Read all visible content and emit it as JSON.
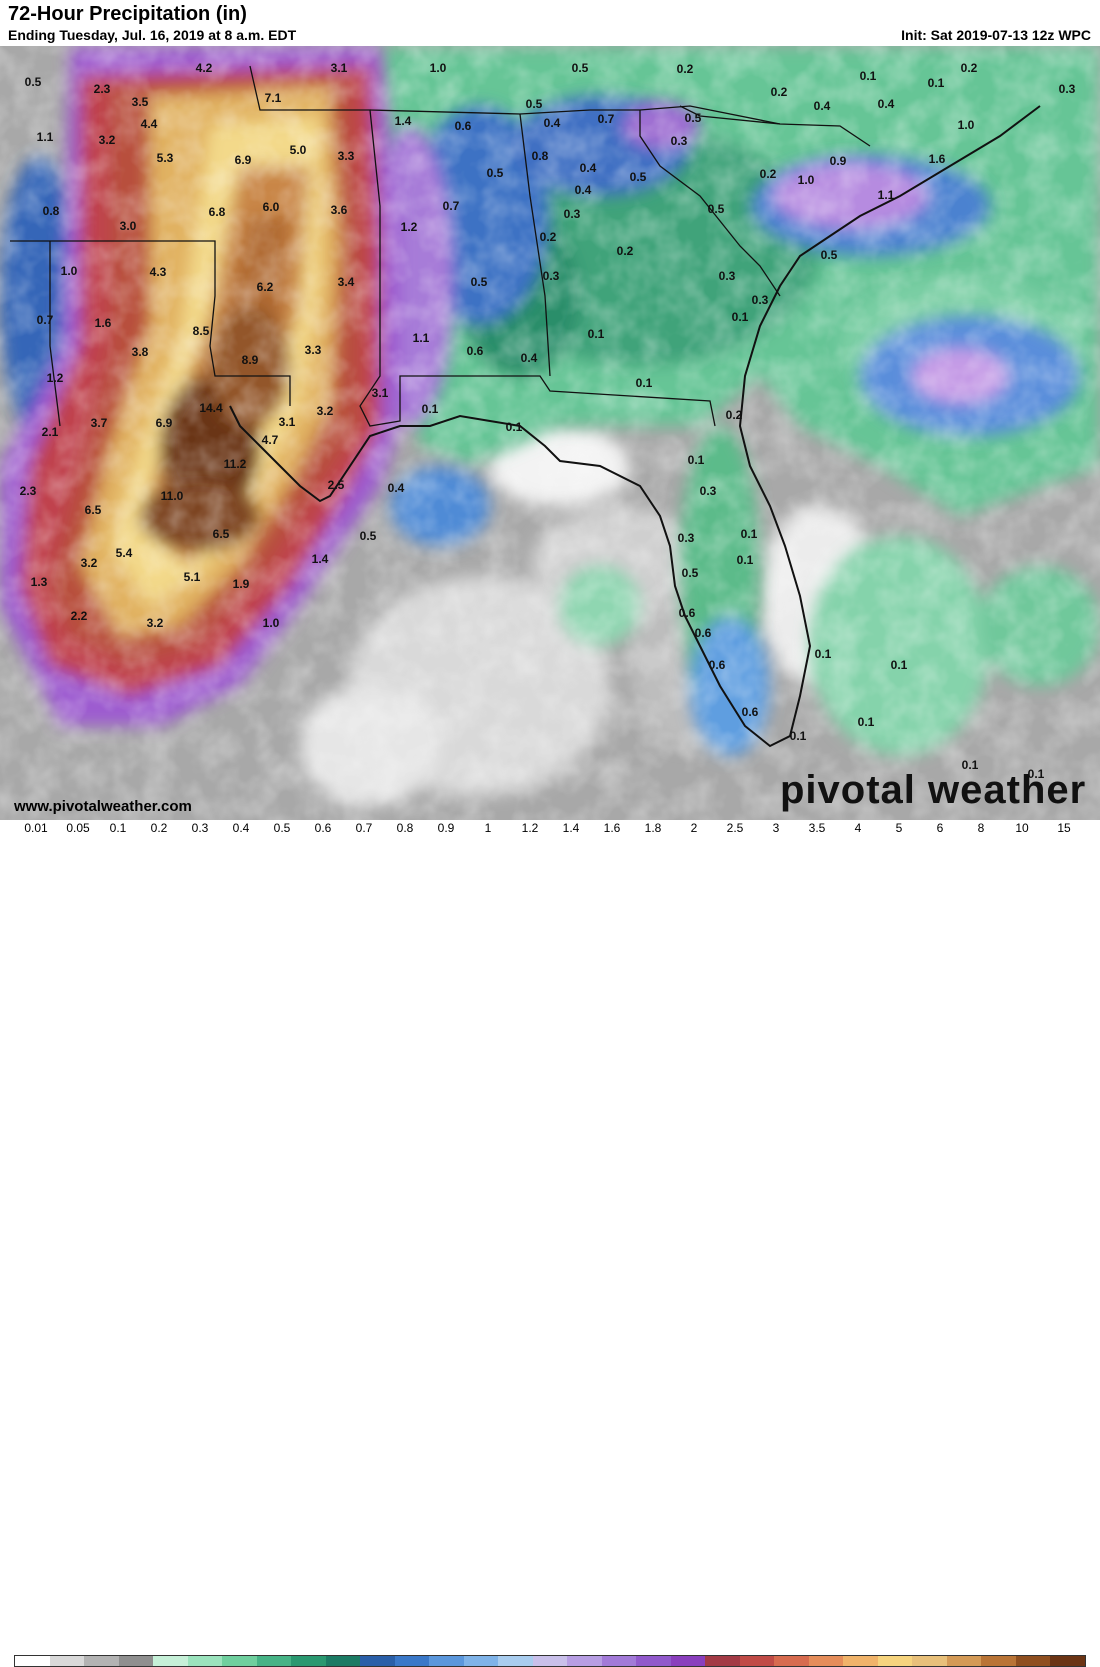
{
  "header": {
    "title": "72-Hour Precipitation (in)",
    "subtitle": "Ending Tuesday, Jul. 16, 2019 at 8 a.m. EDT",
    "init": "Init: Sat 2019-07-13 12z WPC"
  },
  "footer": {
    "site": "www.pivotalweather.com",
    "brand": "pivotal weather"
  },
  "legend": {
    "ticks": [
      "0.01",
      "0.05",
      "0.1",
      "0.2",
      "0.3",
      "0.4",
      "0.5",
      "0.6",
      "0.7",
      "0.8",
      "0.9",
      "1",
      "1.2",
      "1.4",
      "1.6",
      "1.8",
      "2",
      "2.5",
      "3",
      "3.5",
      "4",
      "5",
      "6",
      "8",
      "10",
      "15"
    ],
    "colors": [
      "#ffffff",
      "#d9d9d9",
      "#b3b3b3",
      "#8f8f8f",
      "#c6f0d8",
      "#9be3bd",
      "#6fcf9e",
      "#46b386",
      "#2a9870",
      "#1b7b64",
      "#2a5fa8",
      "#3a78c8",
      "#5b97dc",
      "#7fb3e8",
      "#a9cdef",
      "#c9c0ea",
      "#b79ee3",
      "#a27ad8",
      "#9159cc",
      "#8a3fbd",
      "#a33a45",
      "#c04b46",
      "#d76b4f",
      "#e58d5a",
      "#f0b36a",
      "#f6d47e",
      "#e8c07a",
      "#d49a56",
      "#b97436",
      "#8f4f1f",
      "#6b3414"
    ]
  },
  "map": {
    "labels": [
      {
        "t": "0.5"
      },
      {
        "t": "2.3"
      },
      {
        "t": "4.2"
      },
      {
        "t": "3.1"
      },
      {
        "t": "1.0"
      },
      {
        "t": "0.5"
      },
      {
        "t": "0.2"
      },
      {
        "t": "0.1"
      },
      {
        "t": "0.2"
      },
      {
        "t": "0.3"
      },
      {
        "t": "1.1"
      },
      {
        "t": "3.5"
      },
      {
        "t": "4.4"
      },
      {
        "t": "3.2"
      },
      {
        "t": "7.1"
      },
      {
        "t": "1.4"
      },
      {
        "t": "0.6"
      },
      {
        "t": "0.5"
      },
      {
        "t": "0.4"
      },
      {
        "t": "0.7"
      },
      {
        "t": "0.5"
      },
      {
        "t": "0.2"
      },
      {
        "t": "0.4"
      },
      {
        "t": "0.4"
      },
      {
        "t": "0.1"
      },
      {
        "t": "1.0"
      },
      {
        "t": "5.3"
      },
      {
        "t": "6.9"
      },
      {
        "t": "5.0"
      },
      {
        "t": "3.3"
      },
      {
        "t": "0.3"
      },
      {
        "t": "0.8"
      },
      {
        "t": "0.4"
      },
      {
        "t": "0.5"
      },
      {
        "t": "0.2"
      },
      {
        "t": "0.9"
      },
      {
        "t": "1.6"
      },
      {
        "t": "1.0"
      },
      {
        "t": "0.5"
      },
      {
        "t": "0.4"
      },
      {
        "t": "1.1"
      },
      {
        "t": "0.8"
      },
      {
        "t": "6.8"
      },
      {
        "t": "6.0"
      },
      {
        "t": "3.6"
      },
      {
        "t": "0.7"
      },
      {
        "t": "0.3"
      },
      {
        "t": "0.5"
      },
      {
        "t": "3.0"
      },
      {
        "t": "1.2"
      },
      {
        "t": "0.2"
      },
      {
        "t": "0.2"
      },
      {
        "t": "0.5"
      },
      {
        "t": "1.0"
      },
      {
        "t": "4.3"
      },
      {
        "t": "0.3"
      },
      {
        "t": "0.3"
      },
      {
        "t": "6.2"
      },
      {
        "t": "3.4"
      },
      {
        "t": "0.5"
      },
      {
        "t": "0.7"
      },
      {
        "t": "1.6"
      },
      {
        "t": "0.3"
      },
      {
        "t": "0.1"
      },
      {
        "t": "8.5"
      },
      {
        "t": "0.1"
      },
      {
        "t": "1.1"
      },
      {
        "t": "3.8"
      },
      {
        "t": "8.9"
      },
      {
        "t": "3.3"
      },
      {
        "t": "0.6"
      },
      {
        "t": "0.4"
      },
      {
        "t": "1.2"
      },
      {
        "t": "0.1"
      },
      {
        "t": "3.1"
      },
      {
        "t": "14.4"
      },
      {
        "t": "0.1"
      },
      {
        "t": "3.7"
      },
      {
        "t": "6.9"
      },
      {
        "t": "3.2"
      },
      {
        "t": "0.1"
      },
      {
        "t": "0.2"
      },
      {
        "t": "2.1"
      },
      {
        "t": "3.1"
      },
      {
        "t": "4.7"
      },
      {
        "t": "11.2"
      },
      {
        "t": "0.1"
      },
      {
        "t": "2.3"
      },
      {
        "t": "11.0"
      },
      {
        "t": "2.5"
      },
      {
        "t": "0.4"
      },
      {
        "t": "0.3"
      },
      {
        "t": "6.5"
      },
      {
        "t": "6.5"
      },
      {
        "t": "0.5"
      },
      {
        "t": "0.3"
      },
      {
        "t": "0.1"
      },
      {
        "t": "5.4"
      },
      {
        "t": "1.4"
      },
      {
        "t": "0.1"
      },
      {
        "t": "3.2"
      },
      {
        "t": "0.5"
      },
      {
        "t": "5.1"
      },
      {
        "t": "1.3"
      },
      {
        "t": "1.9"
      },
      {
        "t": "0.6"
      },
      {
        "t": "2.2"
      },
      {
        "t": "3.2"
      },
      {
        "t": "1.0"
      },
      {
        "t": "0.6"
      },
      {
        "t": "0.1"
      },
      {
        "t": "0.1"
      },
      {
        "t": "0.6"
      },
      {
        "t": "0.6"
      },
      {
        "t": "0.1"
      },
      {
        "t": "0.1"
      },
      {
        "t": "0.1"
      },
      {
        "t": "0.1"
      }
    ]
  }
}
